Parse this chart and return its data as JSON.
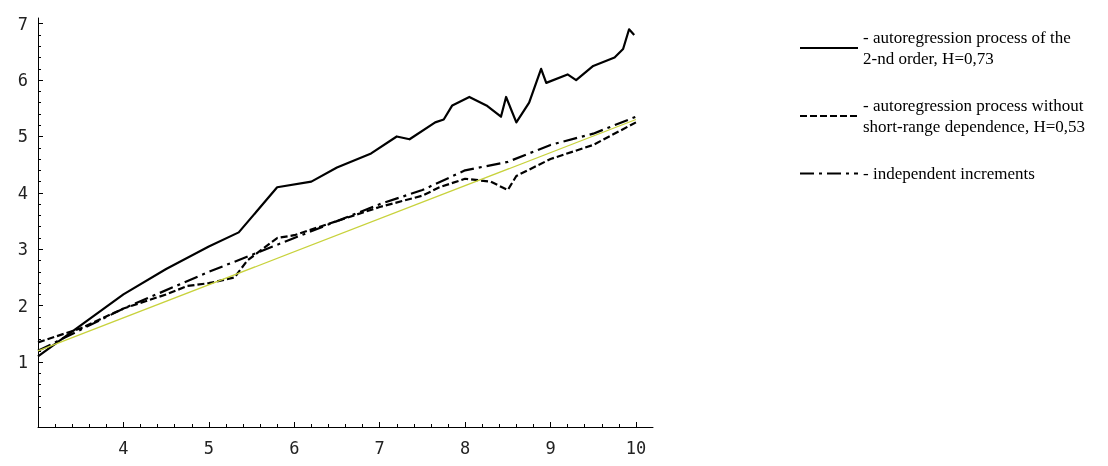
{
  "chart_data": {
    "type": "line",
    "xlim": [
      3,
      10.2
    ],
    "ylim": [
      -0.15,
      7.1
    ],
    "xticks": [
      4,
      5,
      6,
      7,
      8,
      9,
      10
    ],
    "yticks": [
      1,
      2,
      3,
      4,
      5,
      6,
      7
    ],
    "grid": false,
    "legend": "right",
    "marker": "none",
    "series": [
      {
        "name": "- autoregression process of the 2-nd order, H=0,73",
        "color": "#000000",
        "line_style": "solid",
        "x": [
          3.0,
          3.5,
          4.0,
          4.5,
          5.0,
          5.35,
          5.8,
          6.2,
          6.5,
          6.9,
          7.2,
          7.35,
          7.65,
          7.75,
          7.85,
          8.05,
          8.25,
          8.42,
          8.48,
          8.6,
          8.75,
          8.89,
          8.95,
          9.2,
          9.3,
          9.5,
          9.75,
          9.85,
          9.92,
          9.98
        ],
        "values": [
          1.1,
          1.65,
          2.2,
          2.65,
          3.05,
          3.3,
          4.1,
          4.2,
          4.45,
          4.7,
          5.0,
          4.95,
          5.25,
          5.3,
          5.55,
          5.7,
          5.55,
          5.35,
          5.7,
          5.25,
          5.6,
          6.2,
          5.95,
          6.1,
          6.0,
          6.25,
          6.4,
          6.55,
          6.9,
          6.8
        ]
      },
      {
        "name": "- autoregression process without short-range dependence, H=0,53",
        "color": "#000000",
        "line_style": "dashed",
        "x": [
          3.0,
          3.5,
          4.0,
          4.5,
          4.75,
          5.0,
          5.3,
          5.45,
          5.8,
          6.0,
          6.5,
          7.0,
          7.5,
          7.7,
          8.0,
          8.3,
          8.5,
          8.6,
          9.0,
          9.5,
          10.0
        ],
        "values": [
          1.35,
          1.6,
          1.95,
          2.2,
          2.35,
          2.4,
          2.5,
          2.8,
          3.2,
          3.25,
          3.5,
          3.75,
          3.95,
          4.1,
          4.25,
          4.2,
          4.05,
          4.3,
          4.6,
          4.85,
          5.25
        ]
      },
      {
        "name": "- independent increments",
        "color": "#000000",
        "line_style": "dashdot",
        "x": [
          3.0,
          4.0,
          5.0,
          6.0,
          7.0,
          7.5,
          8.0,
          8.5,
          9.0,
          9.5,
          10.0
        ],
        "values": [
          1.2,
          1.95,
          2.6,
          3.2,
          3.8,
          4.05,
          4.4,
          4.55,
          4.85,
          5.05,
          5.35
        ]
      },
      {
        "color": "#c8d23c",
        "line_style": "solid",
        "x": [
          3.0,
          10.0
        ],
        "values": [
          1.2,
          5.3
        ]
      }
    ]
  }
}
